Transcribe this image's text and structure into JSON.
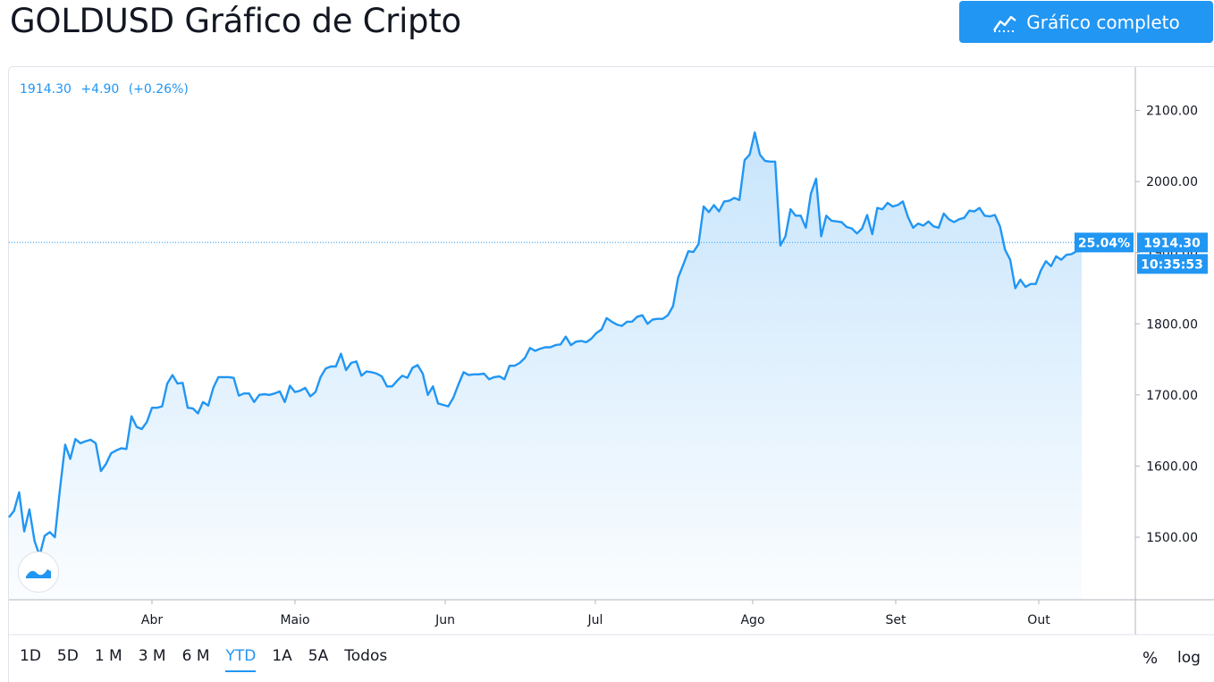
{
  "header": {
    "title": "GOLDUSD Gráfico de Cripto",
    "full_chart_label": "Gráfico completo",
    "full_chart_icon": "chart-line-icon"
  },
  "legend": {
    "price": "1914.30",
    "change": "+4.90",
    "change_pct": "(+0.26%)"
  },
  "price_tags": {
    "percent": "25.04%",
    "last_price": "1914.30",
    "time": "10:35:53"
  },
  "ranges": [
    "1D",
    "5D",
    "1 M",
    "3 M",
    "6 M",
    "YTD",
    "1A",
    "5A",
    "Todos"
  ],
  "active_range": "YTD",
  "controls": {
    "percent": "%",
    "log": "log"
  },
  "colors": {
    "line": "#2196f3",
    "tag": "#2196f3",
    "text": "#131722"
  },
  "chart_data": {
    "type": "area",
    "y_ticks": [
      "2100.00",
      "2000.00",
      "1900.00",
      "1800.00",
      "1700.00",
      "1600.00",
      "1500.00"
    ],
    "x_ticks": [
      "Abr",
      "Maio",
      "Jun",
      "Jul",
      "Ago",
      "Set",
      "Out"
    ],
    "ylim": [
      1412,
      2161
    ],
    "last_value": 1914.3,
    "series": [
      {
        "values": [
          1528,
          1537,
          1563,
          1508,
          1539,
          1495,
          1474,
          1502,
          1507,
          1500,
          1568,
          1630,
          1610,
          1638,
          1632,
          1635,
          1637,
          1632,
          1593,
          1603,
          1618,
          1622,
          1625,
          1624,
          1670,
          1655,
          1652,
          1662,
          1682,
          1682,
          1684,
          1716,
          1728,
          1716,
          1717,
          1682,
          1681,
          1674,
          1690,
          1685,
          1710,
          1725,
          1725,
          1725,
          1724,
          1699,
          1702,
          1702,
          1690,
          1700,
          1701,
          1700,
          1702,
          1705,
          1690,
          1713,
          1704,
          1706,
          1710,
          1698,
          1704,
          1725,
          1737,
          1740,
          1740,
          1758,
          1735,
          1745,
          1747,
          1727,
          1733,
          1732,
          1730,
          1726,
          1712,
          1712,
          1720,
          1727,
          1724,
          1738,
          1742,
          1730,
          1700,
          1712,
          1688,
          1686,
          1684,
          1696,
          1715,
          1732,
          1728,
          1729,
          1729,
          1730,
          1722,
          1725,
          1726,
          1722,
          1741,
          1741,
          1745,
          1752,
          1766,
          1762,
          1765,
          1767,
          1767,
          1770,
          1771,
          1782,
          1770,
          1775,
          1776,
          1774,
          1779,
          1787,
          1792,
          1808,
          1803,
          1799,
          1797,
          1803,
          1803,
          1810,
          1812,
          1800,
          1806,
          1807,
          1807,
          1812,
          1825,
          1865,
          1883,
          1902,
          1901,
          1912,
          1965,
          1957,
          1967,
          1958,
          1972,
          1973,
          1977,
          1974,
          2030,
          2038,
          2069,
          2038,
          2029,
          2028,
          2028,
          1910,
          1923,
          1961,
          1952,
          1952,
          1935,
          1983,
          2004,
          1923,
          1952,
          1945,
          1944,
          1943,
          1936,
          1934,
          1927,
          1934,
          1953,
          1926,
          1963,
          1961,
          1970,
          1965,
          1967,
          1972,
          1950,
          1935,
          1941,
          1938,
          1944,
          1937,
          1935,
          1955,
          1947,
          1943,
          1947,
          1949,
          1959,
          1958,
          1963,
          1952,
          1951,
          1953,
          1937,
          1904,
          1890,
          1850,
          1862,
          1852,
          1856,
          1856,
          1875,
          1888,
          1881,
          1895,
          1890,
          1897,
          1898,
          1902,
          1914.3
        ]
      }
    ]
  }
}
